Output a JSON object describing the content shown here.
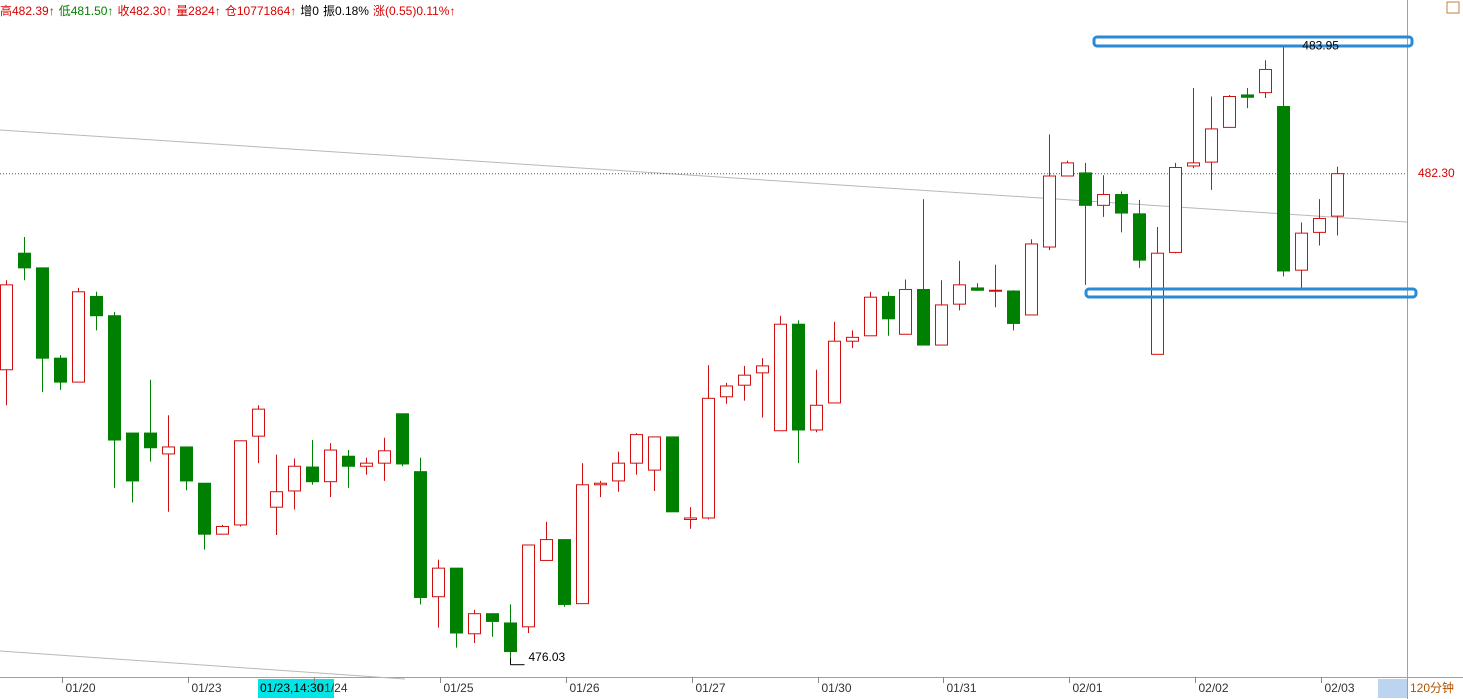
{
  "header": {
    "items": [
      {
        "text": "高482.39↑",
        "color": "#d80000"
      },
      {
        "text": "低481.50↑",
        "color": "#008000"
      },
      {
        "text": "收482.30↑",
        "color": "#d80000"
      },
      {
        "text": "量2824↑",
        "color": "#d80000"
      },
      {
        "text": "仓10771864↑",
        "color": "#d80000"
      },
      {
        "text": "增0",
        "color": "#000000"
      },
      {
        "text": "振0.18%",
        "color": "#000000"
      },
      {
        "text": "涨(0.55)0.11%↑",
        "color": "#d80000"
      }
    ]
  },
  "timeframe": "120分钟",
  "cursor_label": "01/23,14:30",
  "chart_data": {
    "type": "candlestick",
    "up_color": "#d01010",
    "down_color": "#008000",
    "categories": [
      null,
      null,
      null,
      null,
      "01/20",
      null,
      null,
      null,
      null,
      null,
      null,
      "01/23",
      null,
      null,
      null,
      null,
      null,
      null,
      "01/24",
      null,
      null,
      null,
      null,
      null,
      null,
      "01/25",
      null,
      null,
      null,
      null,
      null,
      null,
      "01/26",
      null,
      null,
      null,
      null,
      null,
      null,
      "01/27",
      null,
      null,
      null,
      null,
      null,
      null,
      "01/30",
      null,
      null,
      null,
      null,
      null,
      null,
      "01/31",
      null,
      null,
      null,
      null,
      null,
      null,
      "02/01",
      null,
      null,
      null,
      null,
      null,
      null,
      "02/02",
      null,
      null,
      null,
      null,
      null,
      null,
      "02/03"
    ],
    "open": [
      479.76,
      481.27,
      481.08,
      479.91,
      479.6,
      480.71,
      480.46,
      478.94,
      478.94,
      478.67,
      478.76,
      478.29,
      477.63,
      477.75,
      478.9,
      477.98,
      478.19,
      478.5,
      478.31,
      478.64,
      478.51,
      478.55,
      479.19,
      478.44,
      476.82,
      477.19,
      476.34,
      476.6,
      476.48,
      476.43,
      477.29,
      477.56,
      476.73,
      478.27,
      478.32,
      478.55,
      478.46,
      478.89,
      477.82,
      477.84,
      479.41,
      479.56,
      479.72,
      478.97,
      480.35,
      478.98,
      479.33,
      480.13,
      480.2,
      480.71,
      480.22,
      480.8,
      480.08,
      480.61,
      480.82,
      480.78,
      480.78,
      480.47,
      481.35,
      482.27,
      482.31,
      481.89,
      482.03,
      481.78,
      479.96,
      481.28,
      482.4,
      482.45,
      482.9,
      483.32,
      483.35,
      483.17,
      481.05,
      481.54,
      481.75
    ],
    "high": [
      480.92,
      481.48,
      481.08,
      479.95,
      480.82,
      480.77,
      480.51,
      478.94,
      479.63,
      479.17,
      478.76,
      478.29,
      477.75,
      478.84,
      479.3,
      478.66,
      478.61,
      478.85,
      478.81,
      478.72,
      478.62,
      478.88,
      479.19,
      478.62,
      477.3,
      477.19,
      476.65,
      476.6,
      476.72,
      477.49,
      477.79,
      477.56,
      478.55,
      478.32,
      478.7,
      478.94,
      478.89,
      478.89,
      477.98,
      479.82,
      479.59,
      479.81,
      479.91,
      480.46,
      480.4,
      479.76,
      480.38,
      480.27,
      480.77,
      480.77,
      480.93,
      481.97,
      480.92,
      481.17,
      480.88,
      481.12,
      480.79,
      481.45,
      482.81,
      482.47,
      482.44,
      482.28,
      482.07,
      481.96,
      481.61,
      482.44,
      483.41,
      483.3,
      483.32,
      483.41,
      483.77,
      483.95,
      481.67,
      481.97,
      482.39
    ],
    "low": [
      479.3,
      480.92,
      479.47,
      479.5,
      479.6,
      480.27,
      478.23,
      478.04,
      478.57,
      477.92,
      478.2,
      477.43,
      477.63,
      477.73,
      478.55,
      477.62,
      477.95,
      478.27,
      478.11,
      478.23,
      478.4,
      478.32,
      478.51,
      476.72,
      476.42,
      476.16,
      476.22,
      476.3,
      476.03,
      476.35,
      477.29,
      476.69,
      476.73,
      478.11,
      478.18,
      478.4,
      478.19,
      477.92,
      477.7,
      477.82,
      479.32,
      479.36,
      479.14,
      478.97,
      478.55,
      478.95,
      479.33,
      480.04,
      480.2,
      480.2,
      480.22,
      480.08,
      480.08,
      480.53,
      480.78,
      480.57,
      480.27,
      480.47,
      481.31,
      482.27,
      480.86,
      481.74,
      481.54,
      481.08,
      479.96,
      481.27,
      482.37,
      482.09,
      482.9,
      483.15,
      483.28,
      480.97,
      480.82,
      481.37,
      481.5
    ],
    "close": [
      480.86,
      481.08,
      479.91,
      479.6,
      480.77,
      480.46,
      478.85,
      478.32,
      478.75,
      478.76,
      478.32,
      477.63,
      477.73,
      478.84,
      479.25,
      478.18,
      478.51,
      478.31,
      478.72,
      478.51,
      478.55,
      478.71,
      478.54,
      476.81,
      477.19,
      476.35,
      476.6,
      476.5,
      476.11,
      477.49,
      477.56,
      476.72,
      478.27,
      478.29,
      478.55,
      478.92,
      478.89,
      477.92,
      477.84,
      479.39,
      479.55,
      479.69,
      479.81,
      480.35,
      478.98,
      479.3,
      480.13,
      480.18,
      480.7,
      480.42,
      480.8,
      480.08,
      480.6,
      480.86,
      480.79,
      480.79,
      480.36,
      481.39,
      482.27,
      482.44,
      481.89,
      482.03,
      481.79,
      481.18,
      481.27,
      482.38,
      482.44,
      482.88,
      483.3,
      483.29,
      483.65,
      481.04,
      481.53,
      481.72,
      482.3
    ],
    "ylim": [
      475.78,
      484.55
    ],
    "high_label": 483.95,
    "low_label": 476.03,
    "last_price": {
      "value": 482.3,
      "label": "482.30"
    }
  }
}
